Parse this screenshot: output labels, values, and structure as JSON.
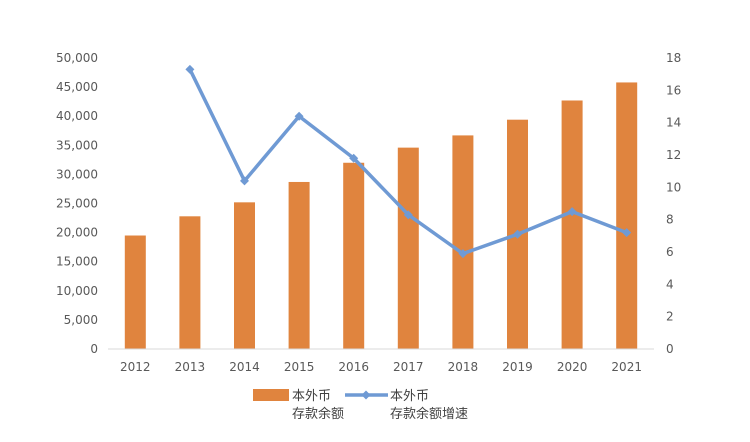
{
  "chart_data": {
    "type": "bar",
    "categories": [
      "2012",
      "2013",
      "2014",
      "2015",
      "2016",
      "2017",
      "2018",
      "2019",
      "2020",
      "2021"
    ],
    "series": [
      {
        "name": "本外币存款余额",
        "legend_lines": [
          "本外币",
          "存款余额"
        ],
        "type": "bar",
        "axis": "left",
        "color": "#E0843E",
        "values": [
          19500,
          22800,
          25200,
          28700,
          32000,
          34600,
          36700,
          39400,
          42700,
          45800
        ]
      },
      {
        "name": "本外币存款余额增速",
        "legend_lines": [
          "本外币",
          "存款余额增速"
        ],
        "type": "line",
        "axis": "right",
        "color": "#6F9AD4",
        "values": [
          null,
          17.3,
          10.4,
          14.4,
          11.8,
          8.3,
          5.9,
          7.1,
          8.5,
          7.2
        ]
      }
    ],
    "y_left": {
      "lim": [
        0,
        50000
      ],
      "ticks": [
        0,
        5000,
        10000,
        15000,
        20000,
        25000,
        30000,
        35000,
        40000,
        45000,
        50000
      ],
      "tick_labels": [
        "0",
        "5,000",
        "10,000",
        "15,000",
        "20,000",
        "25,000",
        "30,000",
        "35,000",
        "40,000",
        "45,000",
        "50,000"
      ]
    },
    "y_right": {
      "lim": [
        0,
        18
      ],
      "ticks": [
        0,
        2,
        4,
        6,
        8,
        10,
        12,
        14,
        16,
        18
      ],
      "tick_labels": [
        "0",
        "2",
        "4",
        "6",
        "8",
        "10",
        "12",
        "14",
        "16",
        "18"
      ]
    },
    "title": "",
    "xlabel": "",
    "ylabel": "",
    "grid": false,
    "legend_position": "bottom"
  }
}
